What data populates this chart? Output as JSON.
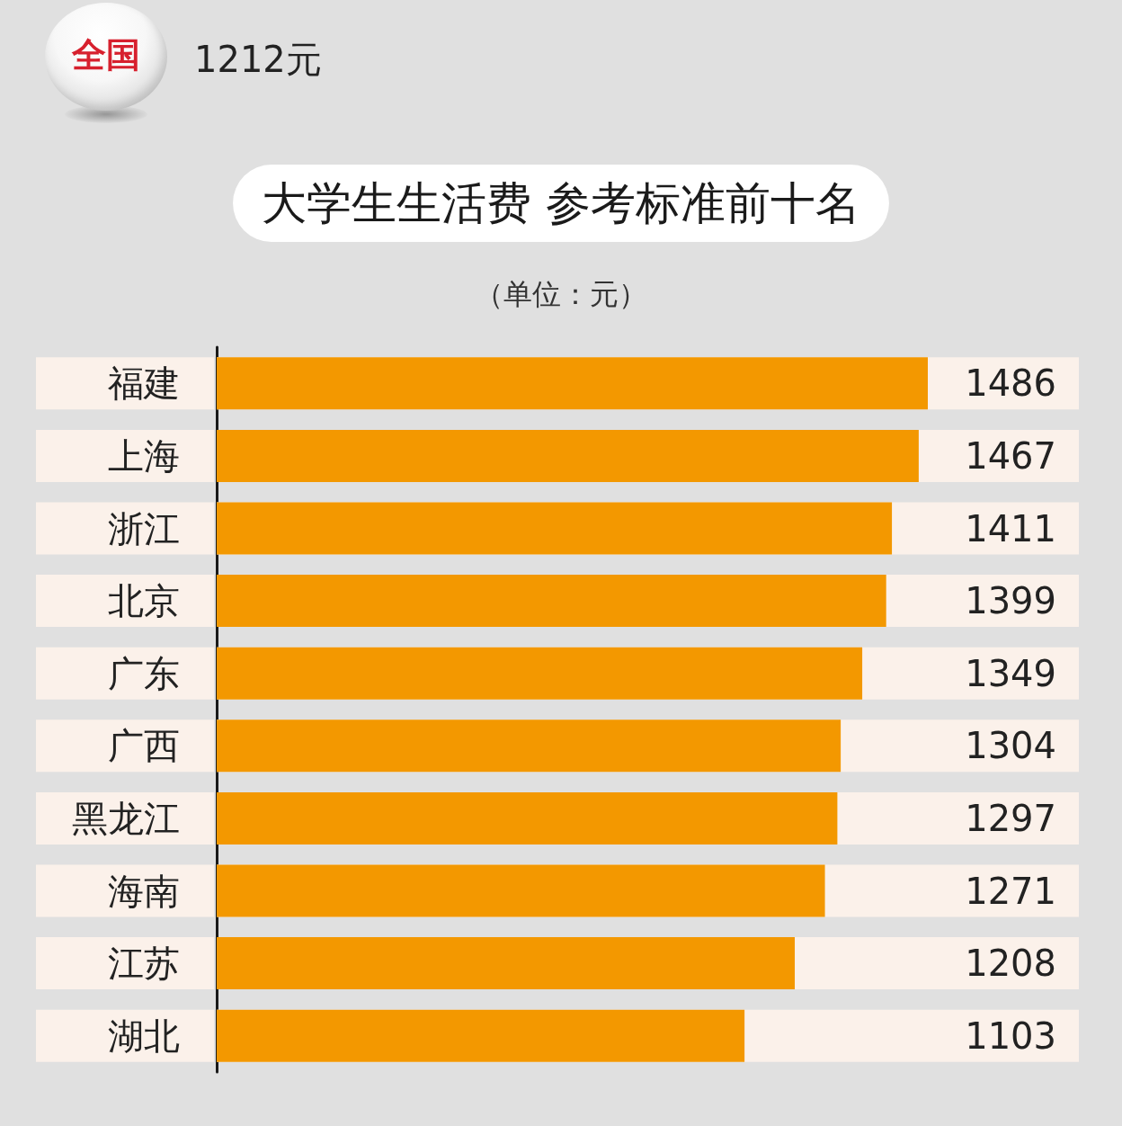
{
  "chart_data": {
    "type": "bar",
    "orientation": "horizontal",
    "title": "大学生生活费 参考标准前十名",
    "subtitle": "（单位：元）",
    "annotations": [
      "全国",
      "1212元"
    ],
    "categories": [
      "福建",
      "上海",
      "浙江",
      "北京",
      "广东",
      "广西",
      "黑龙江",
      "海南",
      "江苏",
      "湖北"
    ],
    "values": [
      1486,
      1467,
      1411,
      1399,
      1349,
      1304,
      1297,
      1271,
      1208,
      1103
    ],
    "color": "#f39800",
    "data_labels": true,
    "tick_labels": "y"
  }
}
